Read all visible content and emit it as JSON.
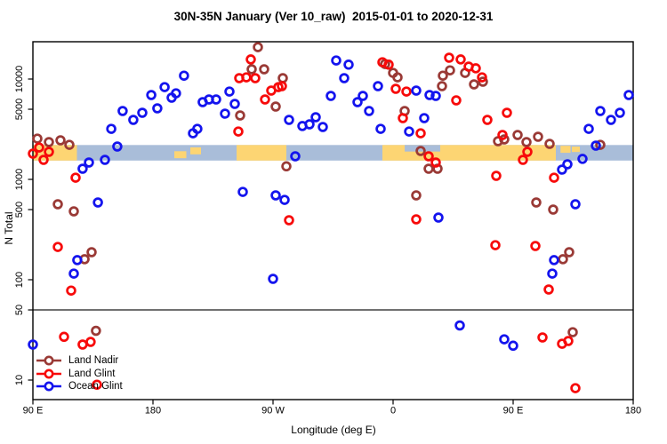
{
  "chart_data": {
    "type": "scatter",
    "title": "30N-35N January (Ver 10_raw)  2015-01-01 to 2020-12-31",
    "xlabel": "Longitude (deg E)",
    "ylabel": "N Total",
    "x_axis": {
      "start_label": "90 E",
      "span_deg": [
        0,
        450
      ],
      "tick_positions_deg": [
        0,
        90,
        180,
        270,
        360,
        450
      ],
      "tick_labels": [
        "90 E",
        "180",
        "90 W",
        "0",
        "90 E",
        "180"
      ]
    },
    "y_axis": {
      "scale": "log",
      "tick_values": [
        10,
        50,
        100,
        500,
        1000,
        5000,
        10000
      ],
      "tick_labels": [
        "10",
        "50",
        "100",
        "500",
        "1000",
        "5000",
        "10000"
      ],
      "range": [
        7,
        23000
      ]
    },
    "ref_line_n": 50,
    "strip": {
      "ocean_color": "#A9BDD9",
      "land_color": "#FDD573",
      "n_top": 2200,
      "n_bottom": 1540,
      "land_segments_deg": [
        [
          0,
          33
        ],
        [
          152.7,
          190
        ],
        [
          262,
          392
        ]
      ],
      "ocean_notches": [
        {
          "v": [
            278.7,
            305.3
          ],
          "band": [
            0,
            0.42
          ]
        }
      ],
      "land_patches": [
        {
          "v": [
            106,
            115
          ],
          "band": [
            0.4,
            0.85
          ]
        },
        {
          "v": [
            118,
            126
          ],
          "band": [
            0.15,
            0.6
          ]
        },
        {
          "v": [
            395.5,
            403
          ],
          "band": [
            0.05,
            0.5
          ]
        },
        {
          "v": [
            404,
            410
          ],
          "band": [
            0.1,
            0.45
          ]
        }
      ]
    },
    "series": [
      {
        "name": "Land Nadir",
        "color": "#9A3A36",
        "points": [
          [
            168.7,
            20800
          ],
          [
            164,
            12500
          ],
          [
            173.3,
            12500
          ],
          [
            187.3,
            10200
          ],
          [
            182,
            5320
          ],
          [
            155.3,
            4340
          ],
          [
            3.3,
            2550
          ],
          [
            12,
            2355
          ],
          [
            20.7,
            2450
          ],
          [
            27.3,
            2210
          ],
          [
            18.7,
            565
          ],
          [
            30.7,
            480
          ],
          [
            190,
            1350
          ],
          [
            264,
            14100
          ],
          [
            270,
            11500
          ],
          [
            273.3,
            10400
          ],
          [
            307.3,
            10800
          ],
          [
            306.7,
            8500
          ],
          [
            324,
            11500
          ],
          [
            330.7,
            8850
          ],
          [
            337.3,
            9400
          ],
          [
            312.7,
            12200
          ],
          [
            278.7,
            4800
          ],
          [
            290.7,
            1920
          ],
          [
            296.7,
            1276
          ],
          [
            303.3,
            1276
          ],
          [
            287.3,
            693
          ],
          [
            377.3,
            589
          ],
          [
            390,
            500
          ],
          [
            425.3,
            2210
          ],
          [
            353.3,
            2500
          ],
          [
            348.7,
            2400
          ],
          [
            363.3,
            2770
          ],
          [
            370,
            2355
          ],
          [
            378.7,
            2660
          ],
          [
            387.3,
            2260
          ],
          [
            38.7,
            160
          ],
          [
            44,
            188
          ],
          [
            47.3,
            31
          ],
          [
            402,
            188
          ],
          [
            397.3,
            160
          ],
          [
            404.7,
            30
          ]
        ]
      },
      {
        "name": "Land Glint",
        "color": "#F70A0A",
        "points": [
          [
            163.3,
            15700
          ],
          [
            160,
            10400
          ],
          [
            154.7,
            10200
          ],
          [
            166.7,
            10200
          ],
          [
            174,
            6260
          ],
          [
            178.7,
            7670
          ],
          [
            184,
            8300
          ],
          [
            186.7,
            8500
          ],
          [
            154,
            3000
          ],
          [
            4.7,
            2080
          ],
          [
            12,
            1880
          ],
          [
            8,
            1565
          ],
          [
            32,
            1040
          ],
          [
            0,
            1805
          ],
          [
            262,
            14700
          ],
          [
            266.7,
            13900
          ],
          [
            272,
            8000
          ],
          [
            280,
            7500
          ],
          [
            312,
            16300
          ],
          [
            320.7,
            15700
          ],
          [
            326.7,
            13300
          ],
          [
            332,
            12800
          ],
          [
            336.7,
            10400
          ],
          [
            317.3,
            6130
          ],
          [
            277.3,
            4080
          ],
          [
            290.7,
            2880
          ],
          [
            340.7,
            3920
          ],
          [
            355.3,
            4610
          ],
          [
            352,
            2770
          ],
          [
            296.7,
            1700
          ],
          [
            302,
            1473
          ],
          [
            370.7,
            1880
          ],
          [
            367.3,
            1565
          ],
          [
            347.3,
            1085
          ],
          [
            390.7,
            1040
          ],
          [
            287.3,
            400
          ],
          [
            346.7,
            221
          ],
          [
            192,
            392
          ],
          [
            18.7,
            212
          ],
          [
            28.7,
            78
          ],
          [
            23.3,
            27
          ],
          [
            37.3,
            22.6
          ],
          [
            43.3,
            24
          ],
          [
            48,
            9
          ],
          [
            376.7,
            217
          ],
          [
            386.7,
            80
          ],
          [
            382,
            26.6
          ],
          [
            396.7,
            23
          ],
          [
            401.3,
            24.5
          ],
          [
            406.7,
            8.3
          ]
        ]
      },
      {
        "name": "Ocean Glint",
        "color": "#1414EE",
        "points": [
          [
            58.7,
            3190
          ],
          [
            67.3,
            4800
          ],
          [
            75.3,
            3920
          ],
          [
            82,
            4610
          ],
          [
            88.7,
            6930
          ],
          [
            93.3,
            5100
          ],
          [
            98.7,
            8300
          ],
          [
            104,
            6520
          ],
          [
            107.3,
            7200
          ],
          [
            113.3,
            10800
          ],
          [
            120,
            2880
          ],
          [
            123.3,
            3190
          ],
          [
            127.3,
            5890
          ],
          [
            132,
            6260
          ],
          [
            137.3,
            6260
          ],
          [
            144,
            4520
          ],
          [
            147.3,
            7500
          ],
          [
            151.3,
            5650
          ],
          [
            192,
            3920
          ],
          [
            202,
            3400
          ],
          [
            207.3,
            3540
          ],
          [
            212,
            4160
          ],
          [
            217.3,
            3330
          ],
          [
            223.3,
            6790
          ],
          [
            227.3,
            15300
          ],
          [
            236.7,
            13900
          ],
          [
            233.3,
            10200
          ],
          [
            258.7,
            8500
          ],
          [
            247.3,
            6790
          ],
          [
            243.3,
            5890
          ],
          [
            252,
            4800
          ],
          [
            260.7,
            3190
          ],
          [
            287.3,
            7670
          ],
          [
            297.3,
            6930
          ],
          [
            302,
            6790
          ],
          [
            282,
            3000
          ],
          [
            293.3,
            4080
          ],
          [
            416.7,
            3190
          ],
          [
            425.3,
            4800
          ],
          [
            433.3,
            3920
          ],
          [
            440,
            4610
          ],
          [
            446.7,
            6930
          ],
          [
            63.3,
            2125
          ],
          [
            54,
            1565
          ],
          [
            42,
            1473
          ],
          [
            37.3,
            1276
          ],
          [
            48.7,
            589
          ],
          [
            157.3,
            750
          ],
          [
            182,
            693
          ],
          [
            188.7,
            625
          ],
          [
            196.7,
            1700
          ],
          [
            396.7,
            1250
          ],
          [
            400.7,
            1415
          ],
          [
            412,
            1600
          ],
          [
            422,
            2170
          ],
          [
            406.7,
            565
          ],
          [
            304,
            416
          ],
          [
            33.3,
            157
          ],
          [
            30.7,
            115
          ],
          [
            180,
            102
          ],
          [
            0,
            22.6
          ],
          [
            390.7,
            157
          ],
          [
            389.3,
            115
          ],
          [
            320,
            35
          ],
          [
            353.3,
            25.5
          ],
          [
            360,
            22
          ]
        ]
      }
    ]
  },
  "legend": {
    "items": [
      "Land Nadir",
      "Land Glint",
      "Ocean Glint"
    ]
  }
}
